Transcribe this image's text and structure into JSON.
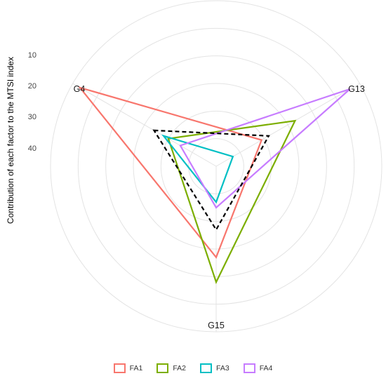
{
  "chart_data": {
    "type": "radar",
    "ylabel": "Contribution of each factor to the MTSI index",
    "axes": [
      "G4",
      "G13",
      "G15"
    ],
    "radial_ticks": [
      10,
      20,
      30,
      40
    ],
    "radial_range": [
      60,
      0
    ],
    "grid": true,
    "legend_position": "bottom",
    "series": [
      {
        "name": "FA1",
        "color": "#F8766D",
        "values": [
          3,
          41,
          27
        ]
      },
      {
        "name": "FA2",
        "color": "#7CAE00",
        "values": [
          40,
          27,
          18
        ]
      },
      {
        "name": "FA3",
        "color": "#00BFC4",
        "values": [
          38,
          53,
          47
        ]
      },
      {
        "name": "FA4",
        "color": "#C77CFF",
        "values": [
          45,
          4,
          45
        ]
      }
    ],
    "threshold": {
      "values": [
        34,
        38,
        37
      ],
      "color": "#000000",
      "style": "dashed"
    }
  }
}
